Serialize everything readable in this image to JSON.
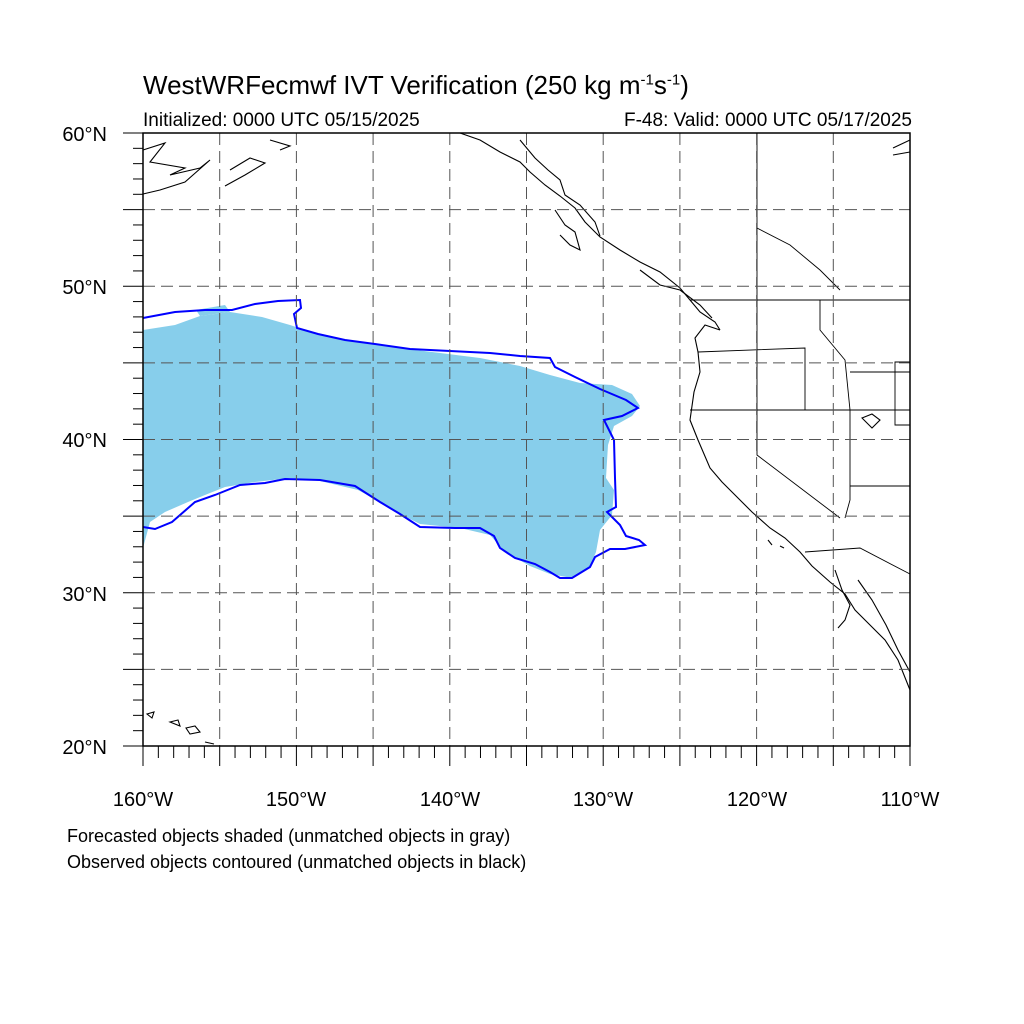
{
  "title": {
    "prefix": "WestWRFecmwf IVT Verification (250 kg m",
    "exp1": "-1",
    "mid": "s",
    "exp2": "-1",
    "suffix": ")"
  },
  "initialized": "Initialized: 0000 UTC 05/15/2025",
  "valid": "F-48: Valid: 0000 UTC 05/17/2025",
  "notes": [
    "Forecasted objects shaded (unmatched objects in gray)",
    "Observed objects contoured (unmatched objects in black)"
  ],
  "axes": {
    "lat_labels": [
      "20°N",
      "30°N",
      "40°N",
      "50°N",
      "60°N"
    ],
    "lon_labels": [
      "160°W",
      "150°W",
      "140°W",
      "130°W",
      "120°W",
      "110°W"
    ],
    "lat_range": [
      20,
      60
    ],
    "lon_range": [
      -160,
      -110
    ],
    "grid": "dashed every 5 degrees"
  },
  "colors": {
    "forecast_fill": "#87ceeb",
    "observed_contour": "#0000ff",
    "coastline": "#000000",
    "grid": "#555555"
  }
}
